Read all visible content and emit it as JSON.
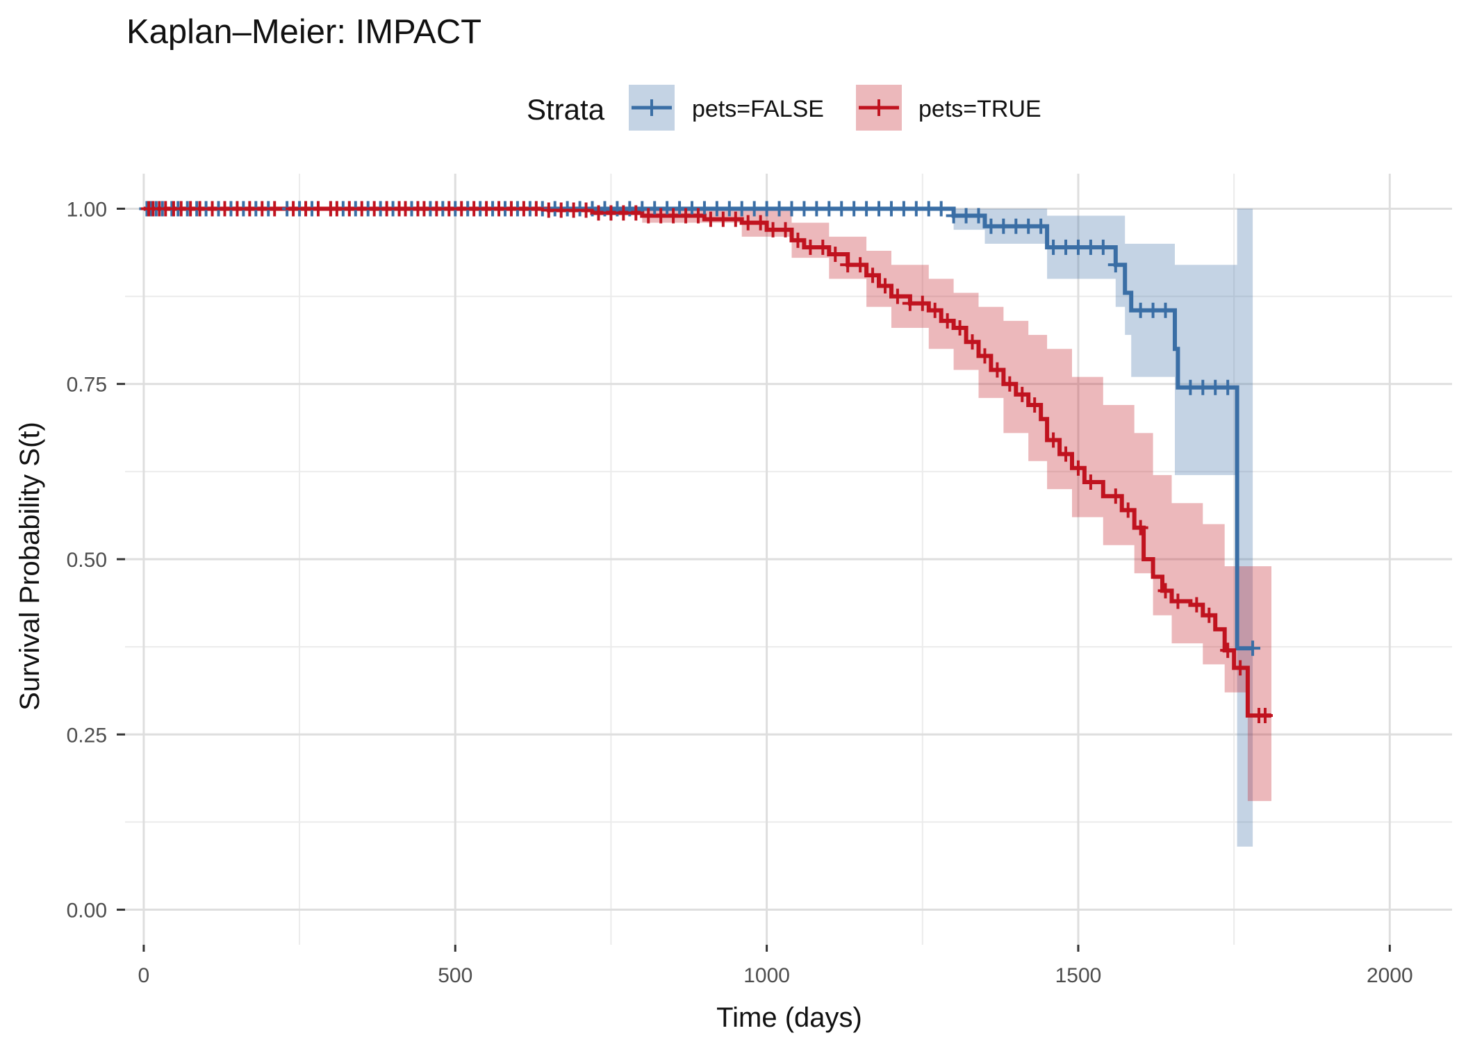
{
  "chart_data": {
    "type": "line",
    "subtype": "kaplan-meier-step-with-confidence-band",
    "title": "Kaplan–Meier: IMPACT",
    "xlabel": "Time (days)",
    "ylabel": "Survival Probability S(t)",
    "xlim": [
      -30,
      2100
    ],
    "ylim": [
      -0.05,
      1.05
    ],
    "x_ticks": [
      0,
      500,
      1000,
      1500,
      2000
    ],
    "x_tick_labels": [
      "0",
      "500",
      "1000",
      "1500",
      "2000"
    ],
    "y_ticks": [
      0,
      0.25,
      0.5,
      0.75,
      1.0
    ],
    "y_tick_labels": [
      "0.00",
      "0.25",
      "0.50",
      "0.75",
      "1.00"
    ],
    "grid": true,
    "legend": {
      "title": "Strata",
      "position": "top",
      "entries": [
        "pets=FALSE",
        "pets=TRUE"
      ]
    },
    "series": [
      {
        "name": "pets=FALSE",
        "color": "#3a6ea5",
        "steps": [
          [
            0,
            1.0
          ],
          [
            1300,
            0.99
          ],
          [
            1350,
            0.975
          ],
          [
            1450,
            0.945
          ],
          [
            1560,
            0.92
          ],
          [
            1575,
            0.88
          ],
          [
            1585,
            0.855
          ],
          [
            1650,
            0.855
          ],
          [
            1655,
            0.8
          ],
          [
            1660,
            0.745
          ],
          [
            1752,
            0.745
          ],
          [
            1755,
            0.373
          ],
          [
            1780,
            0.373
          ]
        ],
        "ci_lower": [
          [
            0,
            1.0
          ],
          [
            1300,
            0.97
          ],
          [
            1350,
            0.95
          ],
          [
            1450,
            0.9
          ],
          [
            1560,
            0.86
          ],
          [
            1575,
            0.82
          ],
          [
            1585,
            0.76
          ],
          [
            1655,
            0.62
          ],
          [
            1755,
            0.09
          ],
          [
            1780,
            0.09
          ]
        ],
        "ci_upper": [
          [
            0,
            1.0
          ],
          [
            1450,
            0.99
          ],
          [
            1575,
            0.95
          ],
          [
            1655,
            0.92
          ],
          [
            1755,
            1.0
          ],
          [
            1780,
            1.0
          ]
        ],
        "censor_times": [
          5,
          12,
          20,
          30,
          45,
          55,
          70,
          85,
          100,
          120,
          140,
          160,
          180,
          200,
          230,
          250,
          270,
          300,
          320,
          340,
          360,
          380,
          400,
          430,
          460,
          480,
          500,
          520,
          540,
          560,
          580,
          600,
          620,
          640,
          660,
          680,
          700,
          720,
          740,
          760,
          780,
          800,
          820,
          840,
          860,
          880,
          900,
          920,
          940,
          960,
          980,
          1000,
          1020,
          1040,
          1060,
          1080,
          1100,
          1120,
          1140,
          1160,
          1180,
          1200,
          1220,
          1240,
          1260,
          1280,
          1300,
          1320,
          1340,
          1360,
          1380,
          1400,
          1420,
          1440,
          1460,
          1480,
          1500,
          1520,
          1540,
          1560,
          1600,
          1620,
          1640,
          1680,
          1700,
          1720,
          1740,
          1780
        ]
      },
      {
        "name": "pets=TRUE",
        "color": "#c0131f",
        "steps": [
          [
            0,
            1.0
          ],
          [
            650,
            0.998
          ],
          [
            720,
            0.994
          ],
          [
            800,
            0.99
          ],
          [
            900,
            0.985
          ],
          [
            960,
            0.98
          ],
          [
            1000,
            0.97
          ],
          [
            1040,
            0.955
          ],
          [
            1060,
            0.945
          ],
          [
            1100,
            0.935
          ],
          [
            1130,
            0.92
          ],
          [
            1160,
            0.905
          ],
          [
            1180,
            0.89
          ],
          [
            1200,
            0.875
          ],
          [
            1230,
            0.865
          ],
          [
            1260,
            0.855
          ],
          [
            1280,
            0.84
          ],
          [
            1300,
            0.83
          ],
          [
            1320,
            0.81
          ],
          [
            1340,
            0.79
          ],
          [
            1360,
            0.77
          ],
          [
            1380,
            0.75
          ],
          [
            1400,
            0.735
          ],
          [
            1420,
            0.72
          ],
          [
            1440,
            0.7
          ],
          [
            1450,
            0.67
          ],
          [
            1470,
            0.65
          ],
          [
            1490,
            0.63
          ],
          [
            1510,
            0.61
          ],
          [
            1540,
            0.59
          ],
          [
            1570,
            0.57
          ],
          [
            1590,
            0.545
          ],
          [
            1605,
            0.5
          ],
          [
            1620,
            0.475
          ],
          [
            1635,
            0.455
          ],
          [
            1650,
            0.44
          ],
          [
            1680,
            0.435
          ],
          [
            1700,
            0.42
          ],
          [
            1720,
            0.4
          ],
          [
            1735,
            0.37
          ],
          [
            1750,
            0.345
          ],
          [
            1770,
            0.345
          ],
          [
            1772,
            0.277
          ],
          [
            1810,
            0.277
          ]
        ],
        "ci_lower": [
          [
            0,
            1.0
          ],
          [
            800,
            0.98
          ],
          [
            960,
            0.96
          ],
          [
            1040,
            0.93
          ],
          [
            1100,
            0.9
          ],
          [
            1160,
            0.86
          ],
          [
            1200,
            0.83
          ],
          [
            1260,
            0.8
          ],
          [
            1300,
            0.77
          ],
          [
            1340,
            0.73
          ],
          [
            1380,
            0.68
          ],
          [
            1420,
            0.64
          ],
          [
            1450,
            0.6
          ],
          [
            1490,
            0.56
          ],
          [
            1540,
            0.52
          ],
          [
            1590,
            0.48
          ],
          [
            1620,
            0.42
          ],
          [
            1650,
            0.38
          ],
          [
            1700,
            0.35
          ],
          [
            1735,
            0.31
          ],
          [
            1772,
            0.155
          ],
          [
            1810,
            0.155
          ]
        ],
        "ci_upper": [
          [
            0,
            1.0
          ],
          [
            960,
            1.0
          ],
          [
            1040,
            0.98
          ],
          [
            1100,
            0.96
          ],
          [
            1160,
            0.94
          ],
          [
            1200,
            0.92
          ],
          [
            1260,
            0.9
          ],
          [
            1300,
            0.88
          ],
          [
            1340,
            0.86
          ],
          [
            1380,
            0.84
          ],
          [
            1420,
            0.82
          ],
          [
            1450,
            0.8
          ],
          [
            1490,
            0.76
          ],
          [
            1540,
            0.72
          ],
          [
            1590,
            0.68
          ],
          [
            1620,
            0.62
          ],
          [
            1650,
            0.58
          ],
          [
            1700,
            0.55
          ],
          [
            1735,
            0.49
          ],
          [
            1810,
            0.49
          ]
        ],
        "censor_times": [
          8,
          15,
          25,
          35,
          48,
          60,
          75,
          90,
          110,
          130,
          150,
          170,
          190,
          210,
          240,
          260,
          280,
          300,
          310,
          330,
          350,
          370,
          390,
          410,
          420,
          440,
          450,
          470,
          490,
          510,
          530,
          550,
          570,
          590,
          610,
          630,
          650,
          670,
          690,
          710,
          730,
          750,
          770,
          790,
          810,
          830,
          850,
          870,
          890,
          910,
          930,
          950,
          970,
          990,
          1010,
          1030,
          1050,
          1070,
          1090,
          1110,
          1130,
          1150,
          1170,
          1190,
          1210,
          1230,
          1250,
          1270,
          1290,
          1310,
          1330,
          1350,
          1370,
          1390,
          1410,
          1430,
          1460,
          1480,
          1500,
          1520,
          1560,
          1580,
          1600,
          1640,
          1660,
          1690,
          1710,
          1740,
          1760,
          1790,
          1800
        ]
      }
    ]
  }
}
